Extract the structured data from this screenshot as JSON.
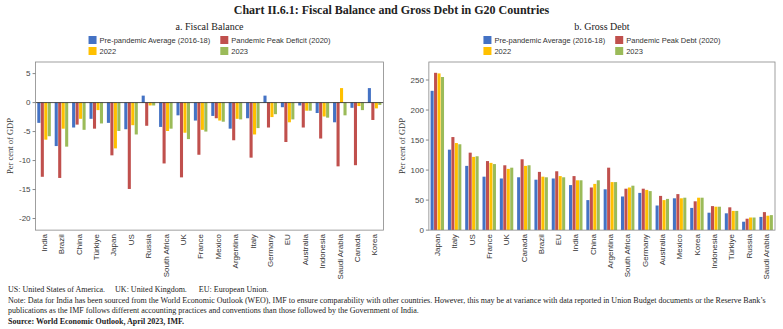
{
  "title": "Chart II.6.1: Fiscal Balance and Gross Debt in G20 Countries",
  "annotations": [
    "US: United States of America.     UK: United Kingdom.      EU: European Union.",
    "Note: Data for India has been sourced from the World Economic Outlook (WEO), IMF to ensure comparability with other countries. However, this may be at variance with data reported in Union Budget documents or the Reserve Bank’s publications as the IMF follows different accounting practices and conventions than those followed by the Government of India.",
    "Source: World Economic Outlook, April 2023, IMF."
  ],
  "chart_data": [
    {
      "type": "bar",
      "title": "a. Fiscal Balance",
      "ylabel": "Per cent of GDP",
      "categories": [
        "India",
        "Brazil",
        "China",
        "Türkiye",
        "Japan",
        "US",
        "Russia",
        "South Africa",
        "UK",
        "France",
        "Mexico",
        "Argentina",
        "Italy",
        "Germany",
        "EU",
        "Australia",
        "Indonesia",
        "Saudi Arabia",
        "Canada",
        "Korea"
      ],
      "series": [
        {
          "name": "Pre-pandemic Average (2016-18)",
          "color": "#4472c4",
          "values": [
            -3.5,
            -7.5,
            -4.3,
            -2.8,
            -3.5,
            -4.6,
            1.2,
            -4.2,
            -2.2,
            -3.1,
            -2.3,
            -4.5,
            -2.7,
            1.2,
            -0.8,
            -0.5,
            -1.8,
            -3.4,
            -0.9,
            2.5
          ]
        },
        {
          "name": "Pandemic Peak Deficit (2020)",
          "color": "#c0504d",
          "values": [
            -12.8,
            -13.0,
            -3.8,
            -4.5,
            -9.1,
            -14.9,
            -4.0,
            -10.5,
            -12.9,
            -9.0,
            -2.7,
            -6.5,
            -9.5,
            -4.3,
            -6.8,
            -4.3,
            -6.2,
            -11.0,
            -10.8,
            -3.0
          ]
        },
        {
          "name": "2022",
          "color": "#ffc000",
          "values": [
            -6.4,
            -4.5,
            -2.8,
            -1.3,
            -7.9,
            -3.9,
            -0.5,
            -4.9,
            -5.2,
            -4.7,
            -3.1,
            -2.8,
            -5.5,
            -2.5,
            -3.4,
            -1.4,
            -2.4,
            2.5,
            -0.6,
            -1.0
          ]
        },
        {
          "name": "2023",
          "color": "#9bbb59",
          "values": [
            -5.8,
            -7.6,
            -4.7,
            -3.6,
            -4.9,
            -5.5,
            -0.5,
            -4.5,
            -6.3,
            -5.0,
            -3.3,
            -2.9,
            -4.4,
            -2.0,
            -2.9,
            -1.4,
            -2.6,
            -2.2,
            -1.3,
            -0.4
          ]
        }
      ],
      "ylim": [
        -22,
        7
      ],
      "yticks": [
        -20,
        -15,
        -10,
        -5,
        0,
        5
      ],
      "legend": "top"
    },
    {
      "type": "bar",
      "title": "b. Gross Debt",
      "ylabel": "Per cent of GDP",
      "categories": [
        "Japan",
        "Italy",
        "US",
        "France",
        "UK",
        "Canada",
        "Brazil",
        "EU",
        "India",
        "China",
        "Argentina",
        "South Africa",
        "Germany",
        "Australia",
        "Mexico",
        "Korea",
        "Indonesia",
        "Türkiye",
        "Russia",
        "Saudi Arabia"
      ],
      "series": [
        {
          "name": "Pre-pandemic Average (2016-18)",
          "color": "#4472c4",
          "values": [
            232,
            134,
            107,
            89,
            86,
            88,
            84,
            86,
            75,
            50,
            68,
            56,
            62,
            41,
            53,
            37,
            29,
            28,
            14,
            22
          ]
        },
        {
          "name": "Pandemic Peak Debt (2020)",
          "color": "#c0504d",
          "values": [
            262,
            155,
            129,
            115,
            108,
            118,
            97,
            98,
            90,
            71,
            104,
            69,
            69,
            57,
            60,
            48,
            40,
            38,
            19,
            30
          ]
        },
        {
          "name": "2022",
          "color": "#ffc000",
          "values": [
            261,
            145,
            122,
            112,
            102,
            107,
            89,
            90,
            83,
            77,
            80,
            71,
            67,
            50,
            53,
            54,
            39,
            32,
            21,
            24
          ]
        },
        {
          "name": "2023",
          "color": "#9bbb59",
          "values": [
            255,
            143,
            123,
            110,
            104,
            108,
            88,
            88,
            83,
            83,
            80,
            74,
            65,
            52,
            54,
            54,
            39,
            32,
            21,
            25
          ]
        }
      ],
      "ylim": [
        0,
        280
      ],
      "yticks": [
        0,
        50,
        100,
        150,
        200,
        250
      ],
      "legend": "top"
    }
  ]
}
